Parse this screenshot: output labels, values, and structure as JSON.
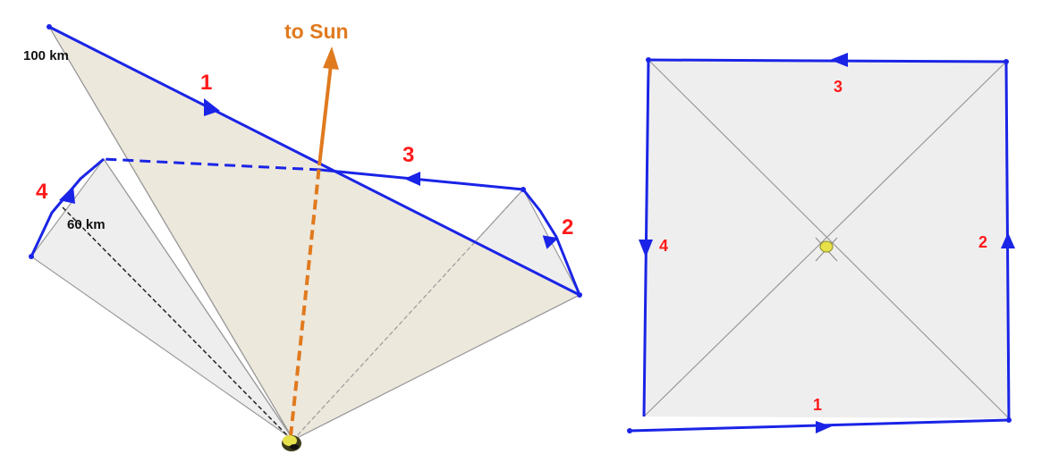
{
  "colors": {
    "path": "#1a24e6",
    "sun_arrow": "#e07a1f",
    "label_red": "#ff1a1a",
    "face_tan": "#ece7da",
    "face_gray": "#eeeeef",
    "edge_gray": "#999999",
    "spacecraft": "#e6e04a"
  },
  "left_view": {
    "sun_label": "to Sun",
    "distance_far": "100 km",
    "distance_near": "60 km",
    "leg_labels": [
      "1",
      "2",
      "3",
      "4"
    ]
  },
  "right_view": {
    "leg_labels": [
      "1",
      "2",
      "3",
      "4"
    ]
  },
  "icons": {
    "spacecraft": "small-body-icon",
    "direction": "arrowhead-icon"
  }
}
